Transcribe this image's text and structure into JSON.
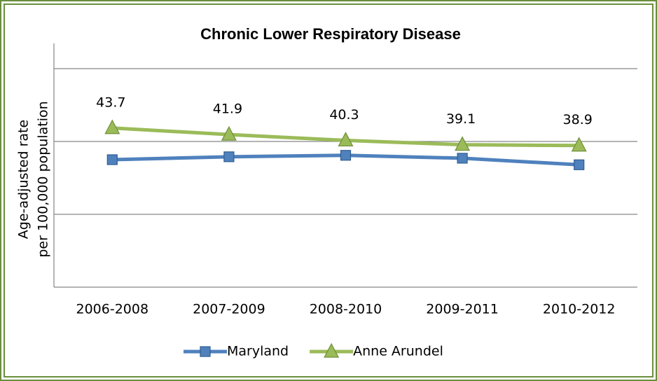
{
  "chart_data": {
    "type": "line",
    "title": "Chronic Lower Respiratory Disease",
    "y_label": [
      "Age-adjusted rate",
      "per 100,000 population"
    ],
    "categories": [
      "2006-2008",
      "2007-2009",
      "2008-2010",
      "2009-2011",
      "2010-2012"
    ],
    "series": [
      {
        "name": "Maryland",
        "color": "#4f81bd",
        "marker": "square",
        "show_labels": false,
        "values": [
          35.0,
          35.8,
          36.2,
          35.4,
          33.6
        ]
      },
      {
        "name": "Anne Arundel",
        "color": "#9bbb59",
        "marker": "triangle",
        "show_labels": true,
        "values": [
          43.7,
          41.9,
          40.3,
          39.1,
          38.9
        ]
      }
    ],
    "ylim": [
      0,
      70
    ],
    "yticks": [
      0,
      20,
      40,
      60
    ],
    "grid": true,
    "legend": "bottom"
  }
}
